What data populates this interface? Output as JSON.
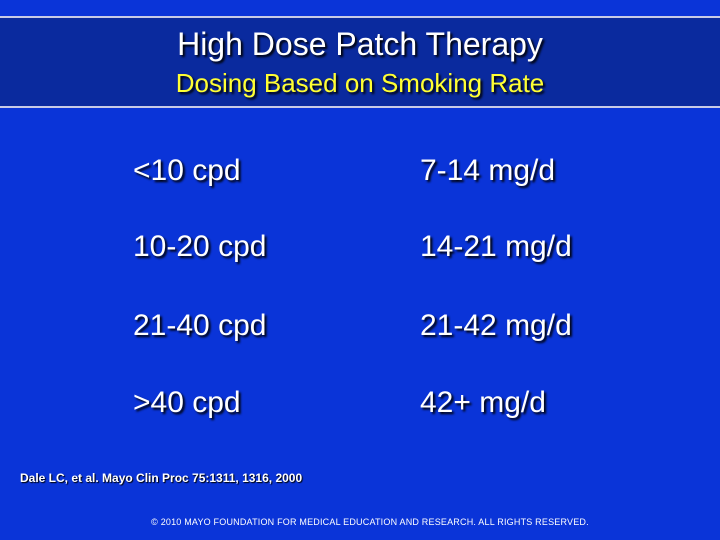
{
  "header": {
    "title": "High Dose Patch Therapy",
    "subtitle": "Dosing Based on Smoking Rate"
  },
  "rows": [
    {
      "smoking_rate": "<10 cpd",
      "dose": "7-14 mg/d"
    },
    {
      "smoking_rate": "10-20 cpd",
      "dose": "14-21 mg/d"
    },
    {
      "smoking_rate": "21-40 cpd",
      "dose": "21-42 mg/d"
    },
    {
      "smoking_rate": ">40 cpd",
      "dose": "42+ mg/d"
    }
  ],
  "citation": "Dale LC, et al. Mayo Clin Proc 75:1311, 1316, 2000",
  "copyright": "© 2010 MAYO FOUNDATION FOR MEDICAL EDUCATION AND RESEARCH. ALL RIGHTS RESERVED.",
  "colors": {
    "background": "#0a34d8",
    "header_band": "#0a2a9e",
    "title_text": "#ffffff",
    "subtitle_text": "#ffff33"
  }
}
